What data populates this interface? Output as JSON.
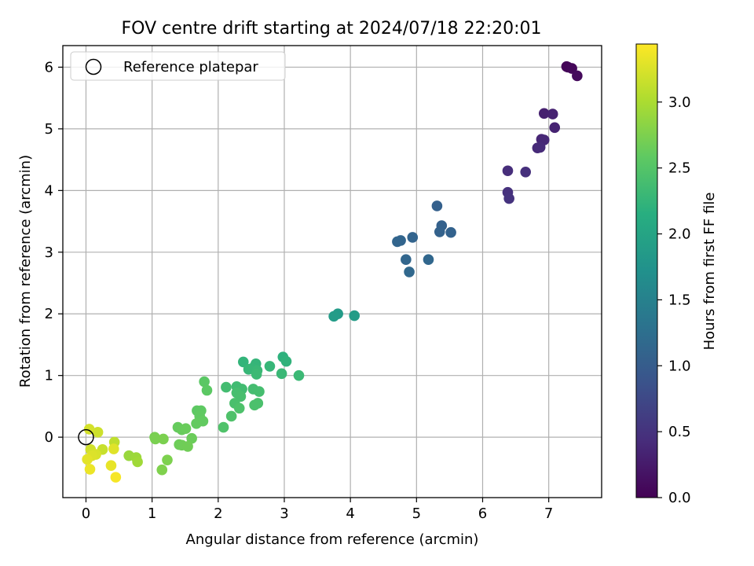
{
  "chart_data": {
    "type": "scatter",
    "title": "FOV centre drift starting at 2024/07/18 22:20:01",
    "xlabel": "Angular distance from reference (arcmin)",
    "ylabel": "Rotation from reference (arcmin)",
    "xlim": [
      -0.35,
      7.8
    ],
    "ylim": [
      -0.98,
      6.35
    ],
    "xticks": [
      "0",
      "1",
      "2",
      "3",
      "4",
      "5",
      "6",
      "7"
    ],
    "yticks": [
      "0",
      "1",
      "2",
      "3",
      "4",
      "5",
      "6"
    ],
    "grid": true,
    "legend": {
      "position": "top-left",
      "entries": [
        "Reference platepar"
      ]
    },
    "colorbar": {
      "label": "Hours from first FF file",
      "colormap": "viridis",
      "range": [
        0.0,
        3.44
      ],
      "ticks": [
        "0.0",
        "0.5",
        "1.0",
        "1.5",
        "2.0",
        "2.5",
        "3.0"
      ]
    },
    "reference_point": {
      "x": 0.0,
      "y": 0.0
    },
    "series": [
      {
        "points": [
          {
            "x": 7.27,
            "y": 6.01,
            "c": 0.02
          },
          {
            "x": 7.29,
            "y": 6.0,
            "c": 0.04
          },
          {
            "x": 7.35,
            "y": 5.98,
            "c": 0.06
          },
          {
            "x": 7.43,
            "y": 5.86,
            "c": 0.09
          },
          {
            "x": 6.93,
            "y": 5.25,
            "c": 0.3
          },
          {
            "x": 7.06,
            "y": 5.24,
            "c": 0.32
          },
          {
            "x": 7.09,
            "y": 5.02,
            "c": 0.33
          },
          {
            "x": 6.89,
            "y": 4.83,
            "c": 0.36
          },
          {
            "x": 6.93,
            "y": 4.82,
            "c": 0.38
          },
          {
            "x": 6.83,
            "y": 4.69,
            "c": 0.4
          },
          {
            "x": 6.87,
            "y": 4.7,
            "c": 0.41
          },
          {
            "x": 6.38,
            "y": 4.32,
            "c": 0.44
          },
          {
            "x": 6.65,
            "y": 4.3,
            "c": 0.46
          },
          {
            "x": 6.38,
            "y": 3.97,
            "c": 0.48
          },
          {
            "x": 6.4,
            "y": 3.87,
            "c": 0.5
          },
          {
            "x": 5.31,
            "y": 3.75,
            "c": 1.05
          },
          {
            "x": 5.38,
            "y": 3.43,
            "c": 1.06
          },
          {
            "x": 5.35,
            "y": 3.33,
            "c": 1.07
          },
          {
            "x": 5.52,
            "y": 3.32,
            "c": 1.08
          },
          {
            "x": 4.94,
            "y": 3.24,
            "c": 1.1
          },
          {
            "x": 4.76,
            "y": 3.19,
            "c": 1.11
          },
          {
            "x": 4.71,
            "y": 3.17,
            "c": 1.12
          },
          {
            "x": 4.84,
            "y": 2.88,
            "c": 1.13
          },
          {
            "x": 5.18,
            "y": 2.88,
            "c": 1.14
          },
          {
            "x": 4.89,
            "y": 2.68,
            "c": 1.15
          },
          {
            "x": 3.81,
            "y": 2.0,
            "c": 1.87
          },
          {
            "x": 3.75,
            "y": 1.96,
            "c": 1.88
          },
          {
            "x": 4.06,
            "y": 1.97,
            "c": 1.89
          },
          {
            "x": 2.98,
            "y": 1.3,
            "c": 2.2
          },
          {
            "x": 3.03,
            "y": 1.23,
            "c": 2.22
          },
          {
            "x": 2.38,
            "y": 1.22,
            "c": 2.24
          },
          {
            "x": 2.57,
            "y": 1.19,
            "c": 2.25
          },
          {
            "x": 2.52,
            "y": 1.12,
            "c": 2.26
          },
          {
            "x": 2.78,
            "y": 1.15,
            "c": 2.27
          },
          {
            "x": 2.46,
            "y": 1.1,
            "c": 2.28
          },
          {
            "x": 2.59,
            "y": 1.08,
            "c": 2.29
          },
          {
            "x": 2.96,
            "y": 1.03,
            "c": 2.3
          },
          {
            "x": 3.22,
            "y": 1.0,
            "c": 2.31
          },
          {
            "x": 2.58,
            "y": 1.02,
            "c": 2.32
          },
          {
            "x": 2.28,
            "y": 0.82,
            "c": 2.35
          },
          {
            "x": 2.36,
            "y": 0.78,
            "c": 2.36
          },
          {
            "x": 2.12,
            "y": 0.81,
            "c": 2.37
          },
          {
            "x": 2.53,
            "y": 0.78,
            "c": 2.38
          },
          {
            "x": 2.62,
            "y": 0.74,
            "c": 2.39
          },
          {
            "x": 2.28,
            "y": 0.72,
            "c": 2.4
          },
          {
            "x": 2.34,
            "y": 0.66,
            "c": 2.41
          },
          {
            "x": 2.25,
            "y": 0.55,
            "c": 2.42
          },
          {
            "x": 2.6,
            "y": 0.55,
            "c": 2.43
          },
          {
            "x": 2.55,
            "y": 0.52,
            "c": 2.44
          },
          {
            "x": 2.32,
            "y": 0.47,
            "c": 2.45
          },
          {
            "x": 2.2,
            "y": 0.34,
            "c": 2.46
          },
          {
            "x": 2.08,
            "y": 0.16,
            "c": 2.47
          },
          {
            "x": 1.79,
            "y": 0.9,
            "c": 2.55
          },
          {
            "x": 1.83,
            "y": 0.76,
            "c": 2.56
          },
          {
            "x": 1.68,
            "y": 0.43,
            "c": 2.57
          },
          {
            "x": 1.74,
            "y": 0.43,
            "c": 2.58
          },
          {
            "x": 1.72,
            "y": 0.34,
            "c": 2.59
          },
          {
            "x": 1.77,
            "y": 0.26,
            "c": 2.6
          },
          {
            "x": 1.67,
            "y": 0.22,
            "c": 2.61
          },
          {
            "x": 1.39,
            "y": 0.16,
            "c": 2.62
          },
          {
            "x": 1.45,
            "y": 0.12,
            "c": 2.63
          },
          {
            "x": 1.51,
            "y": 0.14,
            "c": 2.64
          },
          {
            "x": 1.6,
            "y": -0.02,
            "c": 2.65
          },
          {
            "x": 1.41,
            "y": -0.12,
            "c": 2.66
          },
          {
            "x": 1.45,
            "y": -0.13,
            "c": 2.67
          },
          {
            "x": 1.54,
            "y": -0.15,
            "c": 2.68
          },
          {
            "x": 1.04,
            "y": 0.0,
            "c": 2.72
          },
          {
            "x": 1.05,
            "y": -0.03,
            "c": 2.73
          },
          {
            "x": 1.17,
            "y": -0.03,
            "c": 2.74
          },
          {
            "x": 1.23,
            "y": -0.37,
            "c": 2.75
          },
          {
            "x": 1.15,
            "y": -0.53,
            "c": 2.76
          },
          {
            "x": 0.65,
            "y": -0.3,
            "c": 2.9
          },
          {
            "x": 0.76,
            "y": -0.33,
            "c": 2.92
          },
          {
            "x": 0.78,
            "y": -0.4,
            "c": 2.94
          },
          {
            "x": 0.43,
            "y": -0.08,
            "c": 3.1
          },
          {
            "x": 0.25,
            "y": -0.2,
            "c": 3.15
          },
          {
            "x": 0.18,
            "y": 0.08,
            "c": 3.18
          },
          {
            "x": 0.07,
            "y": -0.2,
            "c": 3.2
          },
          {
            "x": 0.05,
            "y": 0.13,
            "c": 3.22
          },
          {
            "x": 0.15,
            "y": -0.28,
            "c": 3.24
          },
          {
            "x": 0.09,
            "y": -0.3,
            "c": 3.26
          },
          {
            "x": 0.42,
            "y": -0.19,
            "c": 3.28
          },
          {
            "x": 0.02,
            "y": -0.36,
            "c": 3.3
          },
          {
            "x": 0.38,
            "y": -0.46,
            "c": 3.32
          },
          {
            "x": 0.06,
            "y": -0.52,
            "c": 3.35
          },
          {
            "x": 0.45,
            "y": -0.65,
            "c": 3.4
          }
        ]
      }
    ]
  }
}
